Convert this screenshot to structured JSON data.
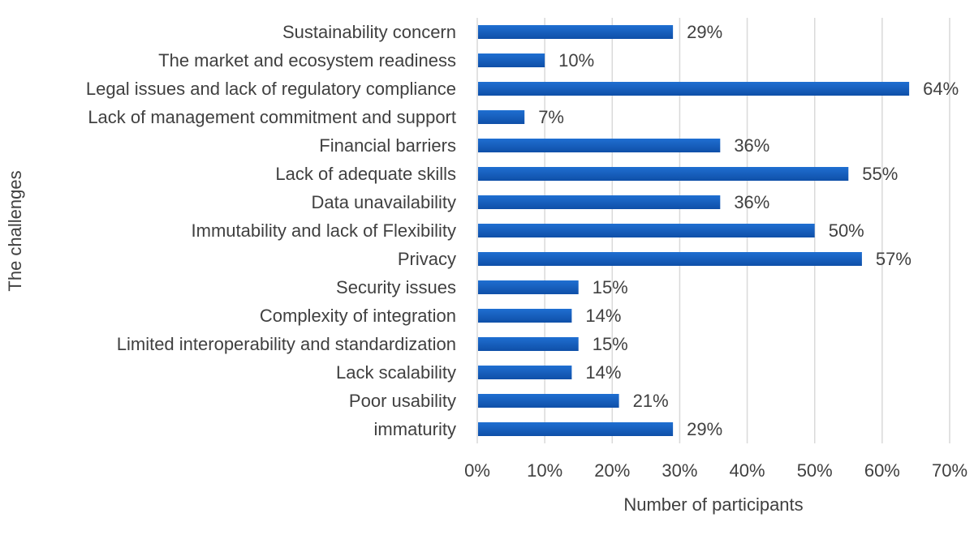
{
  "chart_data": {
    "type": "bar",
    "orientation": "horizontal",
    "categories": [
      "Sustainability concern",
      "The market and ecosystem readiness ",
      "Legal issues and lack of regulatory compliance",
      "Lack of management commitment and support",
      "Financial barriers",
      "Lack of adequate skills",
      "Data unavailability",
      "Immutability and lack of Flexibility",
      "Privacy",
      "Security issues",
      "Complexity of integration",
      "Limited interoperability and standardization",
      "Lack scalability",
      "Poor usability",
      "immaturity"
    ],
    "values": [
      29,
      10,
      64,
      7,
      36,
      55,
      36,
      50,
      57,
      15,
      14,
      15,
      14,
      21,
      29
    ],
    "value_labels": [
      "29%",
      "10%",
      "64%",
      "7%",
      "36%",
      "55%",
      "36%",
      "50%",
      "57%",
      "15%",
      "14%",
      "15%",
      "14%",
      "21%",
      "29%"
    ],
    "xticks": [
      0,
      10,
      20,
      30,
      40,
      50,
      60,
      70
    ],
    "xtick_labels": [
      "0%",
      "10%",
      "20%",
      "30%",
      "40%",
      "50%",
      "60%",
      "70%"
    ],
    "xlim": [
      0,
      70
    ],
    "xlabel": "Number of participants",
    "ylabel": "The challenges",
    "title": "",
    "grid": true,
    "bar_color": "#1f6fd1",
    "bar_color_dark": "#0f4fa8"
  }
}
